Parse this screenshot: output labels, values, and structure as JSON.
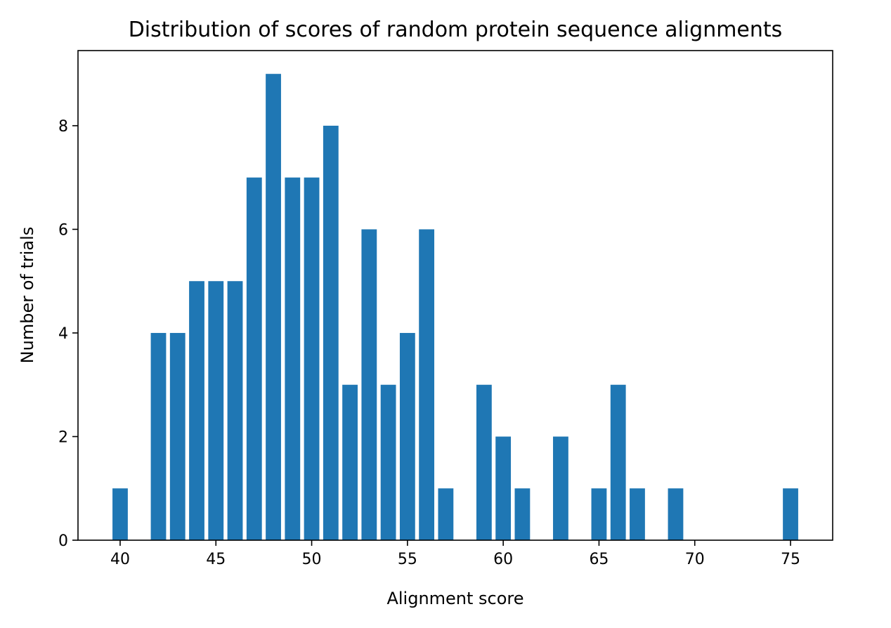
{
  "chart_data": {
    "type": "bar",
    "title": "Distribution of scores of random protein sequence alignments",
    "xlabel": "Alignment score",
    "ylabel": "Number of trials",
    "x": [
      40,
      42,
      43,
      44,
      45,
      46,
      47,
      48,
      49,
      50,
      51,
      52,
      53,
      54,
      55,
      56,
      57,
      59,
      60,
      61,
      63,
      65,
      66,
      67,
      69,
      75
    ],
    "values": [
      1,
      4,
      4,
      5,
      5,
      5,
      7,
      9,
      7,
      7,
      8,
      3,
      6,
      3,
      4,
      6,
      1,
      3,
      2,
      1,
      2,
      1,
      3,
      1,
      1,
      1
    ],
    "xlim": [
      37.8,
      77.2
    ],
    "ylim": [
      0,
      9.45
    ],
    "xticks": [
      "40",
      "45",
      "50",
      "55",
      "60",
      "65",
      "70",
      "75"
    ],
    "yticks": [
      "0",
      "2",
      "4",
      "6",
      "8"
    ],
    "grid": false,
    "legend": "none",
    "bar_color": "#1f77b4"
  }
}
